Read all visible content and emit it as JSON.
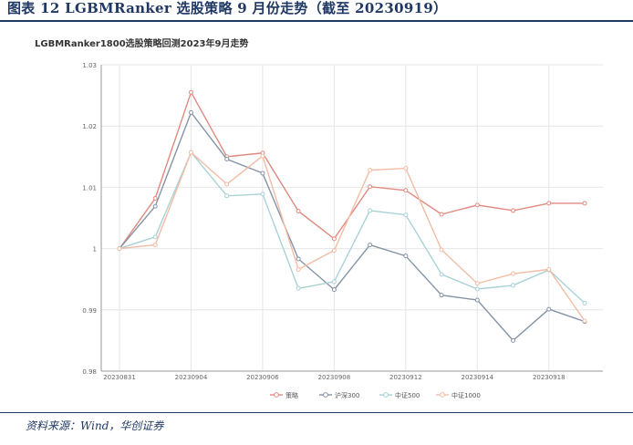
{
  "figure_title": "图表 12   LGBMRanker 选股策略 9 月份走势（截至 20230919）",
  "source": "资料来源：Wind，华创证券",
  "colors": {
    "accent": "#1f3864"
  },
  "chart_data": {
    "type": "line",
    "title": "LGBMRanker1800选股策略回测2023年9月走势",
    "xlabel": "",
    "ylabel": "",
    "ylim": [
      0.98,
      1.03
    ],
    "yticks": [
      "0.98",
      "0.99",
      "1",
      "1.01",
      "1.02",
      "1.03"
    ],
    "grid": true,
    "legend_position": "bottom",
    "categories": [
      "20230831",
      "20230901",
      "20230904",
      "20230905",
      "20230906",
      "20230907",
      "20230908",
      "20230911",
      "20230912",
      "20230913",
      "20230914",
      "20230915",
      "20230918",
      "20230919"
    ],
    "xtick_labels": [
      "20230831",
      "20230904",
      "20230906",
      "20230908",
      "20230912",
      "20230914",
      "20230918"
    ],
    "series": [
      {
        "name": "策略",
        "color": "#e08a80",
        "values": [
          1.0,
          1.0082,
          1.0255,
          1.015,
          1.0156,
          1.0061,
          1.0016,
          1.0101,
          1.0095,
          1.0056,
          1.0071,
          1.0062,
          1.0074,
          1.0074
        ]
      },
      {
        "name": "沪深300",
        "color": "#8593a6",
        "values": [
          1.0,
          1.0069,
          1.0222,
          1.0146,
          1.0123,
          0.9983,
          0.9933,
          1.0006,
          0.9988,
          0.9924,
          0.9916,
          0.985,
          0.9901,
          0.9881
        ]
      },
      {
        "name": "中证500",
        "color": "#a9d2d6",
        "values": [
          1.0,
          1.0019,
          1.0157,
          1.0086,
          1.0089,
          0.9935,
          0.9946,
          1.0062,
          1.0055,
          0.9958,
          0.9934,
          0.994,
          0.9965,
          0.9911
        ]
      },
      {
        "name": "中证1000",
        "color": "#f2bca5",
        "values": [
          1.0,
          1.0006,
          1.0157,
          1.0105,
          1.0151,
          0.9966,
          0.9997,
          1.0128,
          1.0131,
          0.9998,
          0.9943,
          0.9959,
          0.9966,
          0.9882
        ]
      }
    ]
  }
}
